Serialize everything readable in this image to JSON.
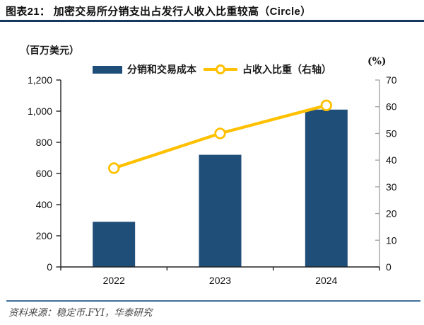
{
  "header": {
    "title": "图表21：  加密交易所分销支出占发行人收入比重较高（Circle）"
  },
  "chart_data": {
    "type": "bar+line",
    "title": "加密交易所分销支出占发行人收入比重较高（Circle）",
    "categories": [
      "2022",
      "2023",
      "2024"
    ],
    "series": [
      {
        "name": "分销和交易成本",
        "type": "bar",
        "axis": "left",
        "values": [
          290,
          720,
          1010
        ]
      },
      {
        "name": "占收入比重（右轴）",
        "type": "line",
        "axis": "right",
        "values": [
          37,
          50,
          60.5
        ]
      }
    ],
    "left_axis": {
      "title": "（百万美元）",
      "min": 0,
      "max": 1200,
      "step": 200,
      "tick_labels": [
        "0",
        "200",
        "400",
        "600",
        "800",
        "1,000",
        "1,200"
      ]
    },
    "right_axis": {
      "title": "(%)",
      "min": 0,
      "max": 70,
      "step": 10,
      "tick_labels": [
        "0",
        "10",
        "20",
        "30",
        "40",
        "50",
        "60",
        "70"
      ]
    },
    "grid": false,
    "legend_position": "top-center"
  },
  "footer": {
    "source": "资料来源：稳定币.FYI，华泰研究"
  },
  "colors": {
    "bar": "#1F4E79",
    "line": "#FFC000",
    "marker_fill": "#FFFFFF",
    "title_rule": "#17375E",
    "footer_rule": "#41709C",
    "right_axis": "#A6A6A6"
  }
}
